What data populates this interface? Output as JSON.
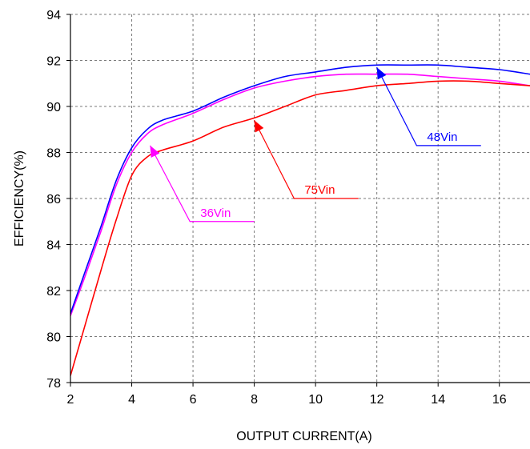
{
  "chart_data": {
    "type": "line",
    "title": "",
    "xlabel": "OUTPUT CURRENT(A)",
    "ylabel": "EFFICIENCY(%)",
    "xlim": [
      2,
      17
    ],
    "ylim": [
      78,
      94
    ],
    "xticks": [
      2,
      4,
      6,
      8,
      10,
      12,
      14,
      16
    ],
    "yticks": [
      78,
      80,
      82,
      84,
      86,
      88,
      90,
      92,
      94
    ],
    "grid": true,
    "grid_style": "dashed",
    "series": [
      {
        "name": "36Vin",
        "color": "#ff00ff",
        "x": [
          2,
          2.5,
          3,
          3.5,
          4,
          4.5,
          5,
          6,
          7,
          8,
          9,
          10,
          11,
          12,
          13,
          14,
          15,
          16,
          17
        ],
        "y": [
          80.9,
          82.7,
          84.6,
          86.6,
          88.0,
          88.8,
          89.2,
          89.7,
          90.3,
          90.8,
          91.1,
          91.3,
          91.4,
          91.4,
          91.4,
          91.3,
          91.2,
          91.1,
          90.9
        ]
      },
      {
        "name": "48Vin",
        "color": "#0000ff",
        "x": [
          2,
          2.5,
          3,
          3.5,
          4,
          4.5,
          5,
          6,
          7,
          8,
          9,
          10,
          11,
          12,
          13,
          14,
          15,
          16,
          17
        ],
        "y": [
          81.0,
          82.9,
          84.8,
          86.8,
          88.2,
          89.0,
          89.4,
          89.8,
          90.4,
          90.9,
          91.3,
          91.5,
          91.7,
          91.8,
          91.8,
          91.8,
          91.7,
          91.6,
          91.4
        ]
      },
      {
        "name": "75Vin",
        "color": "#ff0000",
        "x": [
          2,
          2.5,
          3,
          3.5,
          4,
          4.5,
          5,
          6,
          7,
          8,
          9,
          10,
          11,
          12,
          13,
          14,
          15,
          16,
          17
        ],
        "y": [
          78.3,
          80.6,
          82.9,
          85.1,
          87.0,
          87.8,
          88.1,
          88.5,
          89.1,
          89.5,
          90.0,
          90.5,
          90.7,
          90.9,
          91.0,
          91.1,
          91.1,
          91.0,
          90.9
        ]
      }
    ],
    "annotations": [
      {
        "text": "48Vin",
        "color": "#0000ff",
        "arrow_to": [
          12.0,
          91.7
        ],
        "elbow": [
          13.3,
          88.3
        ],
        "line_end": [
          15.4,
          88.3
        ]
      },
      {
        "text": "75Vin",
        "color": "#ff0000",
        "arrow_to": [
          8.0,
          89.4
        ],
        "elbow": [
          9.3,
          86.0
        ],
        "line_end": [
          11.4,
          86.0
        ]
      },
      {
        "text": "36Vin",
        "color": "#ff00ff",
        "arrow_to": [
          4.6,
          88.3
        ],
        "elbow": [
          5.9,
          85.0
        ],
        "line_end": [
          8.0,
          85.0
        ]
      }
    ]
  }
}
